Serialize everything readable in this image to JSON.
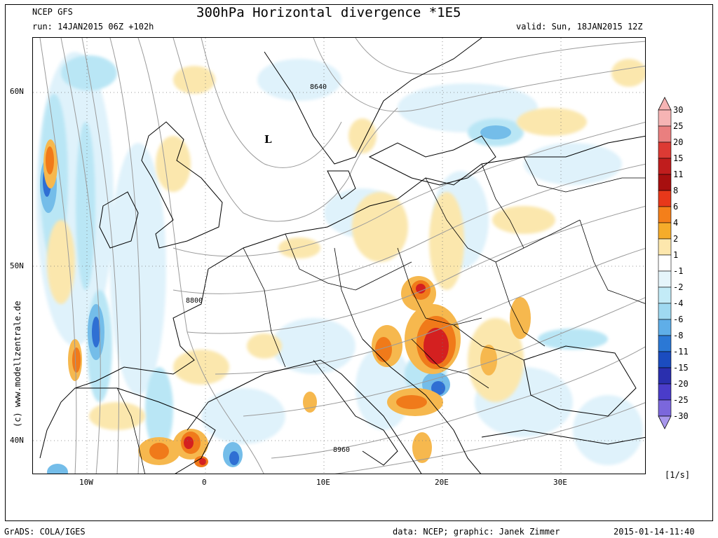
{
  "header": {
    "model": "NCEP GFS",
    "run": "run: 14JAN2015 06Z +102h",
    "title": "300hPa Horizontal divergence *1E5",
    "valid": "valid: Sun, 18JAN2015 12Z"
  },
  "map": {
    "lat_labels": [
      "60N",
      "50N",
      "40N"
    ],
    "lon_labels": [
      "10W",
      "0",
      "10E",
      "20E",
      "30E"
    ],
    "contour_labels": [
      "8640",
      "8800",
      "8960"
    ],
    "pressure_center": "L",
    "colors": {
      "pos_strong": "#d42020",
      "pos_mid": "#f07a1a",
      "pos_weak": "#f6b84e",
      "pos_faint": "#fbe7ad",
      "neg_faint": "#dff2fb",
      "neg_weak": "#b9e6f5",
      "neg_mid": "#74bde9",
      "neg_strong": "#2f6fd3",
      "land": "#000000",
      "contour": "#9a9a9a"
    }
  },
  "colorbar": {
    "levels": [
      "30",
      "25",
      "20",
      "15",
      "11",
      "8",
      "6",
      "4",
      "2",
      "1",
      "-1",
      "-2",
      "-4",
      "-6",
      "-8",
      "-11",
      "-15",
      "-20",
      "-25",
      "-30"
    ],
    "colors": [
      "#f6b4b4",
      "#ea7f7f",
      "#dd3a34",
      "#c01d1d",
      "#a70f0f",
      "#e8381a",
      "#f47f1a",
      "#f5ac2a",
      "#fde7ad",
      "#ffffff",
      "#e6f5fb",
      "#c3ebf7",
      "#9fd9f1",
      "#5faee8",
      "#2b78d5",
      "#1b4cbf",
      "#2a2fae",
      "#4a3cc9",
      "#7b67dc",
      "#a897ec"
    ],
    "unit": "[1/s]"
  },
  "side_credit": "(c) www.modellzentrale.de",
  "footer": {
    "left": "GrADS: COLA/IGES",
    "center": "data: NCEP; graphic: Janek Zimmer",
    "right": "2015-01-14-11:40"
  }
}
